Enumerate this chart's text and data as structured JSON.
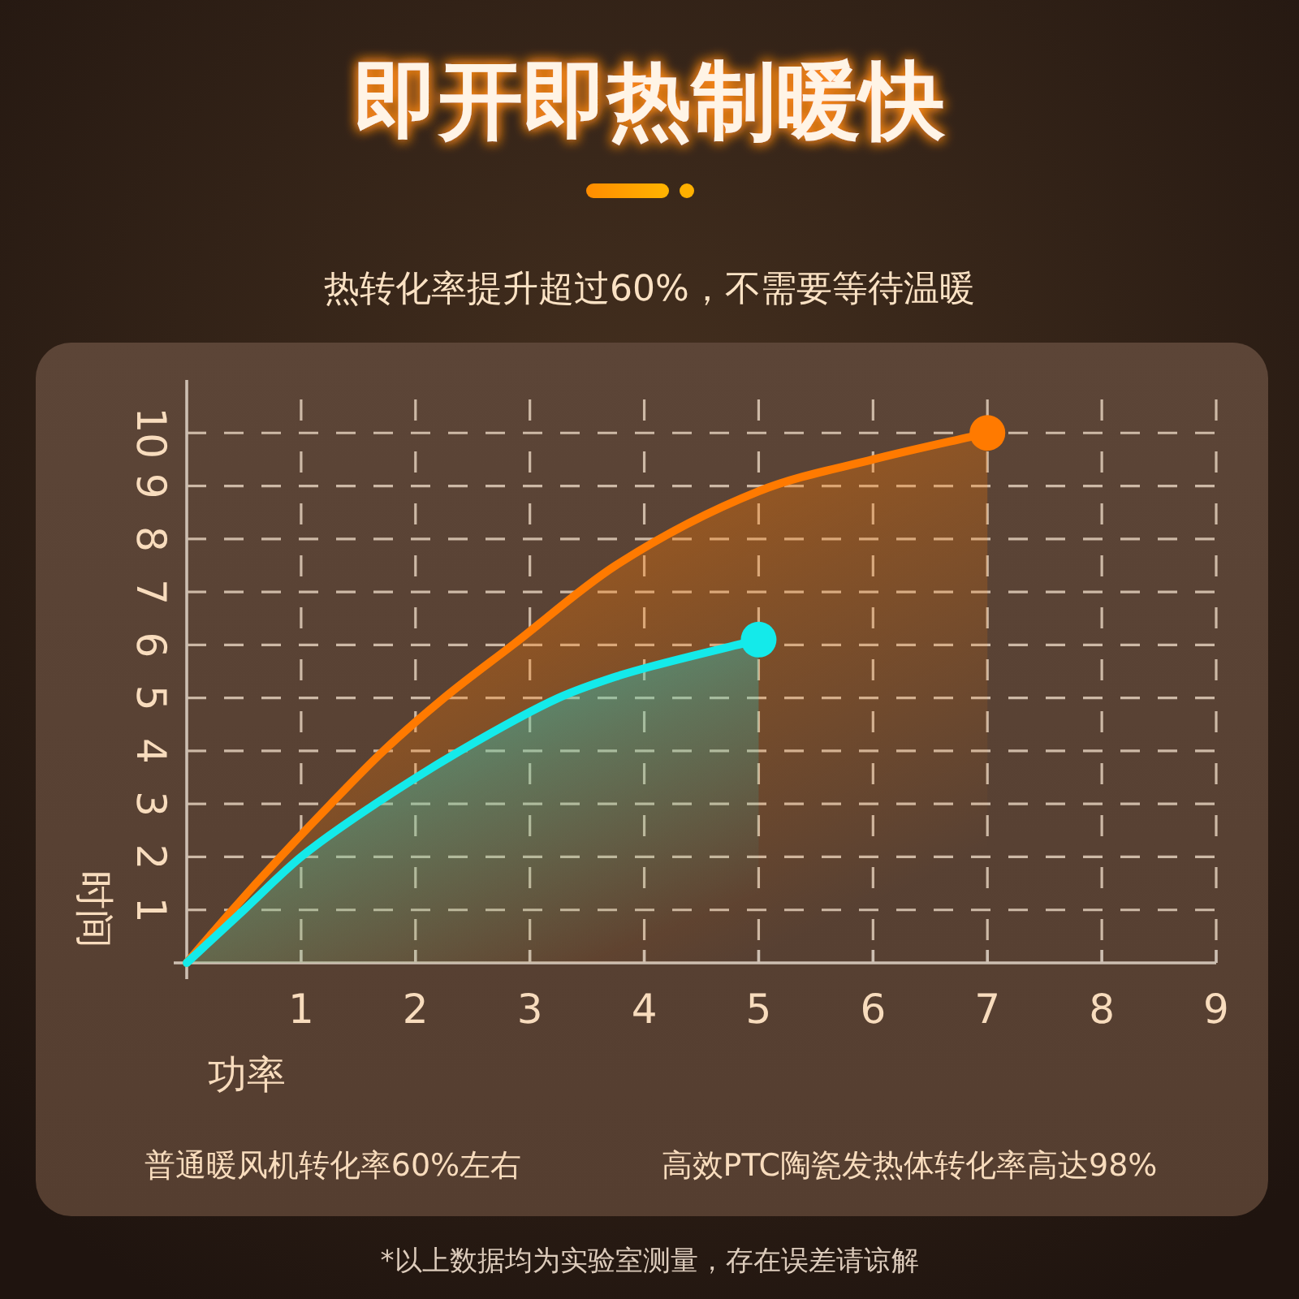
{
  "chart_data": {
    "type": "area",
    "title": "即开即热制暖快",
    "subtitle": "热转化率提升超过60%，不需要等待温暖",
    "xlabel": "功率",
    "ylabel": "时间",
    "xlim": [
      0,
      9
    ],
    "ylim": [
      0,
      11
    ],
    "xticks": [
      1,
      2,
      3,
      4,
      5,
      6,
      7,
      8,
      9
    ],
    "yticks": [
      1,
      2,
      3,
      4,
      5,
      6,
      7,
      8,
      9,
      10
    ],
    "grid": true,
    "series": [
      {
        "color": "#ff7a00",
        "x": [
          0,
          0.4,
          0.82,
          1.26,
          1.72,
          2.25,
          2.85,
          3.75,
          5,
          6,
          7
        ],
        "values": [
          0,
          1,
          2,
          3,
          4,
          5,
          6,
          7.5,
          8.9,
          9.5,
          10
        ]
      },
      {
        "color": "#14eaea",
        "x": [
          0,
          0.5,
          1,
          1.65,
          2.39,
          3.25,
          3.75,
          4.07,
          5
        ],
        "values": [
          0,
          1,
          2,
          3,
          4,
          5,
          5.4,
          5.6,
          6.1
        ]
      },
      {
        "type": "scatter",
        "marker": "circle",
        "color": "#ff7a00",
        "x": [
          7
        ],
        "values": [
          10
        ]
      },
      {
        "type": "scatter",
        "marker": "circle",
        "color": "#14eaea",
        "x": [
          5
        ],
        "values": [
          6.1
        ]
      }
    ],
    "annotations": [
      "普通暖风机转化率60%左右",
      "高效PTC陶瓷发热体转化率高达98%",
      "*以上数据均为实验室测量，存在误差请谅解"
    ]
  }
}
